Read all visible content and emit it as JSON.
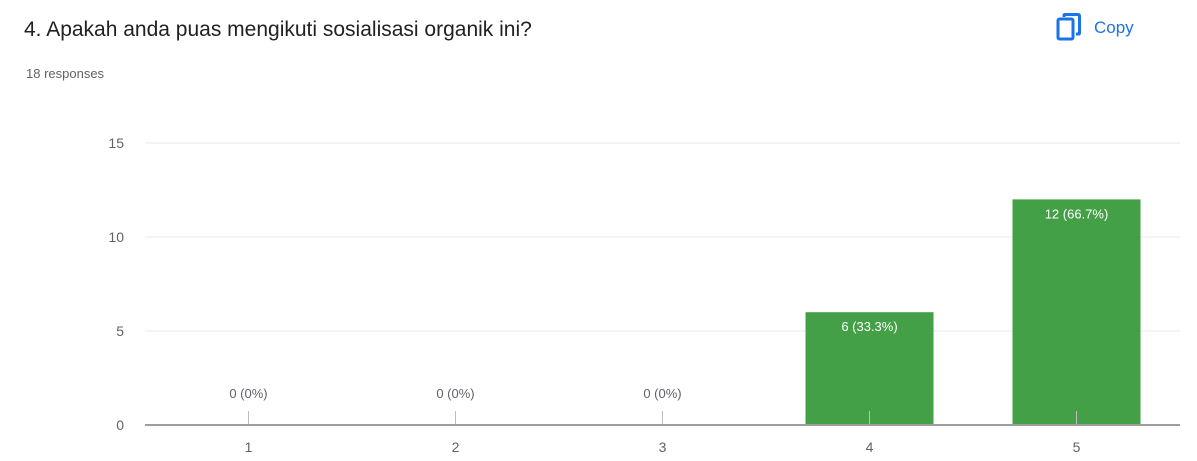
{
  "question": {
    "title": "4. Apakah anda puas mengikuti sosialisasi organik ini?",
    "responses": "18 responses"
  },
  "copy_label": "Copy",
  "icons": {
    "copy": "copy-icon"
  },
  "colors": {
    "bar": "#43a047",
    "accent": "#1a73e8",
    "grid": "#e8eaed",
    "axis": "#9e9e9e"
  },
  "chart_data": {
    "type": "bar",
    "categories": [
      "1",
      "2",
      "3",
      "4",
      "5"
    ],
    "values": [
      0,
      0,
      0,
      6,
      12
    ],
    "labels": [
      "0 (0%)",
      "0 (0%)",
      "0 (0%)",
      "6 (33.3%)",
      "12 (66.7%)"
    ],
    "yticks": [
      "0",
      "5",
      "10",
      "15"
    ],
    "ylim": [
      0,
      15
    ],
    "grid": true
  }
}
